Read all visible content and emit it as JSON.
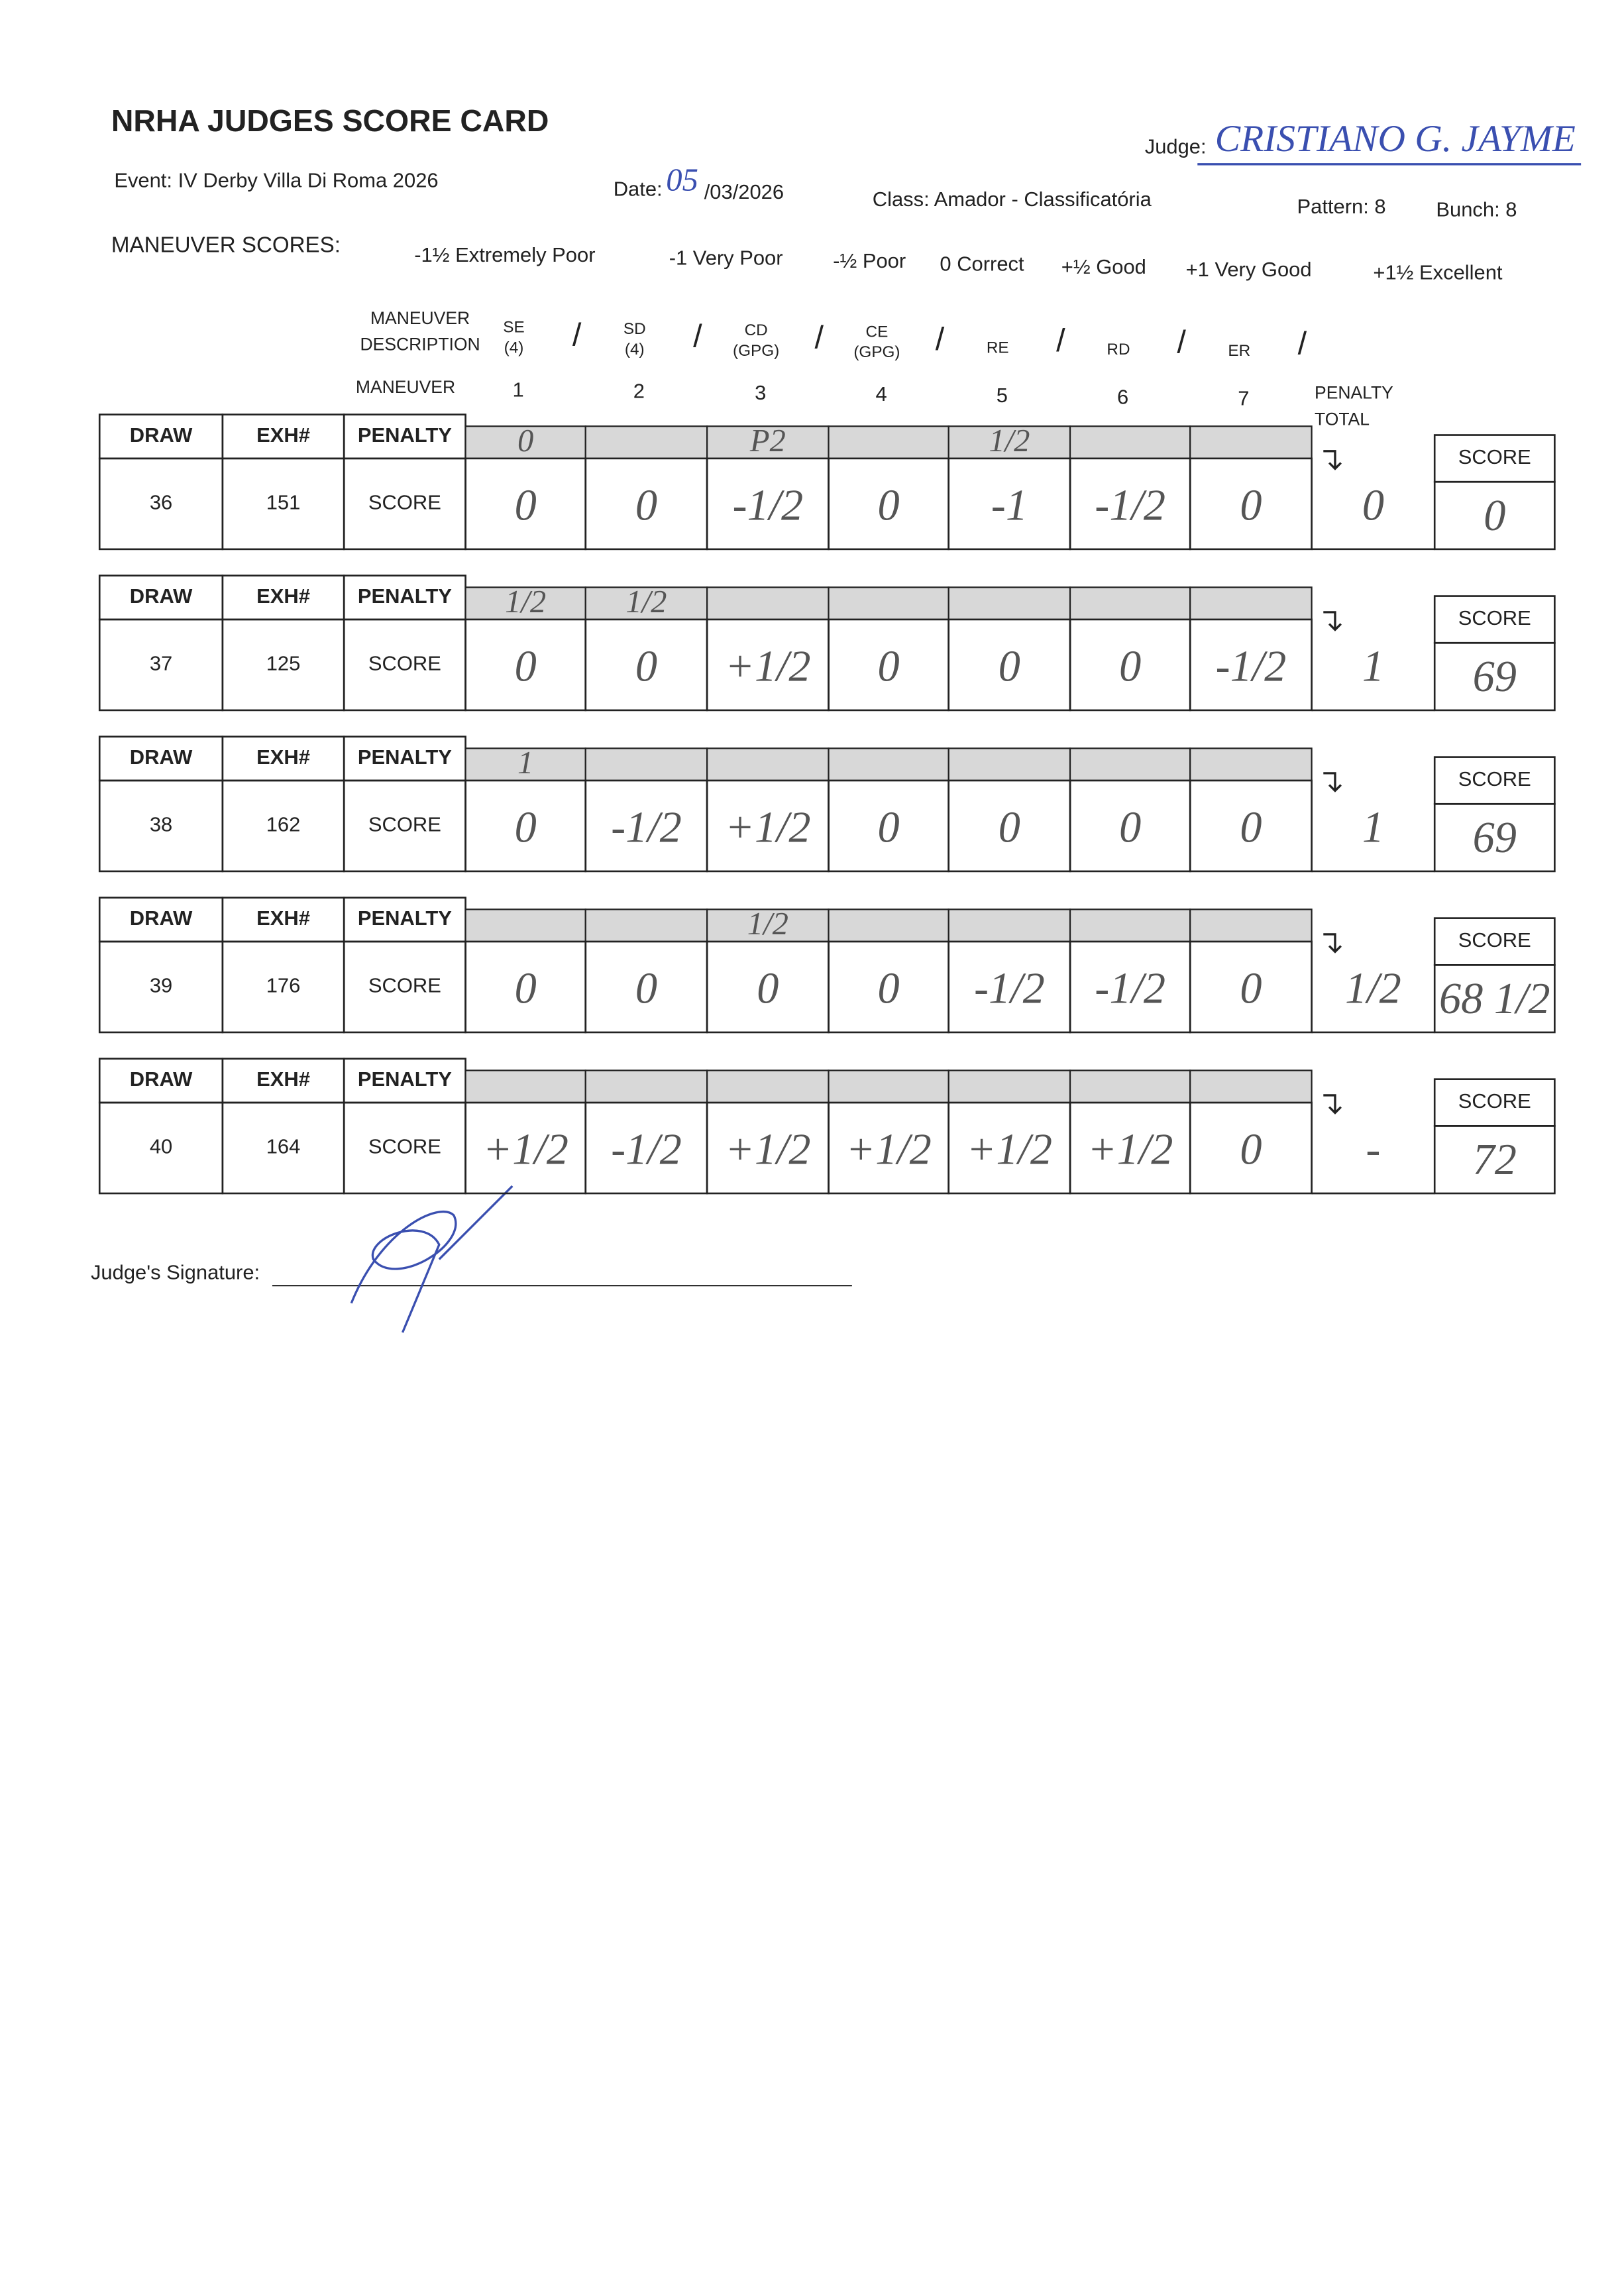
{
  "header": {
    "title": "NRHA JUDGES SCORE CARD",
    "judge_label": "Judge:",
    "judge": "CRISTIANO G. JAYME",
    "event": "Event: IV Derby Villa Di Roma 2026",
    "date_label": "Date:",
    "date_day": "05",
    "date_rest": "/03/2026",
    "class": "Class: Amador - Classificatória",
    "pattern": "Pattern: 8",
    "bunch": "Bunch: 8"
  },
  "legend": {
    "label": "MANEUVER SCORES:",
    "items": [
      "-1½ Extremely Poor",
      "-1 Very Poor",
      "-½ Poor",
      "0 Correct",
      "+½ Good",
      "+1 Very Good",
      "+1½ Excellent"
    ]
  },
  "maneuvers": {
    "description_label": [
      "MANEUVER",
      "DESCRIPTION"
    ],
    "descriptions": [
      [
        "SE",
        "(4)"
      ],
      [
        "SD",
        "(4)"
      ],
      [
        "CD",
        "(GPG)"
      ],
      [
        "CE",
        "(GPG)"
      ],
      [
        "RE"
      ],
      [
        "RD"
      ],
      [
        "ER"
      ]
    ],
    "number_label": "MANEUVER",
    "numbers": [
      "1",
      "2",
      "3",
      "4",
      "5",
      "6",
      "7"
    ],
    "penalty_total_label": [
      "PENALTY",
      "TOTAL"
    ]
  },
  "table": {
    "headers": {
      "draw": "DRAW",
      "exh": "EXH#",
      "penalty": "PENALTY",
      "score": "SCORE"
    },
    "rows": [
      {
        "draw": "36",
        "exh": "151",
        "penalties": [
          "0",
          null,
          "P2",
          null,
          "1/2",
          null,
          null
        ],
        "scores": [
          "0",
          "0",
          "-1/2",
          "0",
          "-1",
          "-1/2",
          "0"
        ],
        "penalty_total": "0",
        "score": "0"
      },
      {
        "draw": "37",
        "exh": "125",
        "penalties": [
          "1/2",
          "1/2",
          null,
          null,
          null,
          null,
          null
        ],
        "scores": [
          "0",
          "0",
          "+1/2",
          "0",
          "0",
          "0",
          "-1/2"
        ],
        "penalty_total": "1",
        "score": "69"
      },
      {
        "draw": "38",
        "exh": "162",
        "penalties": [
          "1",
          null,
          null,
          null,
          null,
          null,
          null
        ],
        "scores": [
          "0",
          "-1/2",
          "+1/2",
          "0",
          "0",
          "0",
          "0"
        ],
        "penalty_total": "1",
        "score": "69"
      },
      {
        "draw": "39",
        "exh": "176",
        "penalties": [
          null,
          null,
          "1/2",
          null,
          null,
          null,
          null
        ],
        "scores": [
          "0",
          "0",
          "0",
          "0",
          "-1/2",
          "-1/2",
          "0"
        ],
        "penalty_total": "1/2",
        "score": "68 1/2"
      },
      {
        "draw": "40",
        "exh": "164",
        "penalties": [
          null,
          null,
          null,
          null,
          null,
          null,
          null
        ],
        "scores": [
          "+1/2",
          "-1/2",
          "+1/2",
          "+1/2",
          "+1/2",
          "+1/2",
          "0"
        ],
        "penalty_total": "-",
        "score": "72"
      }
    ]
  },
  "footer": {
    "signature_label": "Judge's Signature:"
  }
}
